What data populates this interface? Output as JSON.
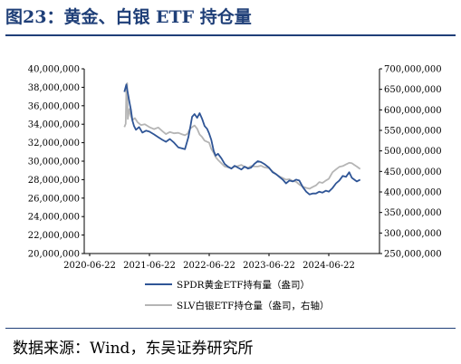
{
  "title": "图23：黄金、白银 ETF 持仓量",
  "source": "数据来源：Wind，东吴证券研究所",
  "chart_data": {
    "type": "line",
    "x_ticks": [
      "2020-06-22",
      "2021-06-22",
      "2022-06-22",
      "2023-06-22",
      "2024-06-22"
    ],
    "y_left_ticks": [
      "20,000,000",
      "22,000,000",
      "24,000,000",
      "26,000,000",
      "28,000,000",
      "30,000,000",
      "32,000,000",
      "34,000,000",
      "36,000,000",
      "38,000,000",
      "40,000,000"
    ],
    "y_right_ticks": [
      "250,000,000",
      "300,000,000",
      "350,000,000",
      "400,000,000",
      "450,000,000",
      "500,000,000",
      "550,000,000",
      "600,000,000",
      "650,000,000",
      "700,000,000"
    ],
    "y_left_range": [
      20000000,
      40000000
    ],
    "y_right_range": [
      250000000,
      700000000
    ],
    "grid": false,
    "legend_position": "bottom",
    "series": [
      {
        "name": "SPDR黄金ETF持有量（盎司）",
        "axis": "left",
        "color": "#2f5596",
        "points": [
          [
            "2021-01-20",
            37500000
          ],
          [
            "2021-02-01",
            38300000
          ],
          [
            "2021-02-10",
            37400000
          ],
          [
            "2021-02-20",
            36400000
          ],
          [
            "2021-03-01",
            35600000
          ],
          [
            "2021-03-10",
            34400000
          ],
          [
            "2021-03-20",
            33800000
          ],
          [
            "2021-04-01",
            33400000
          ],
          [
            "2021-04-20",
            33700000
          ],
          [
            "2021-05-10",
            33100000
          ],
          [
            "2021-06-01",
            33300000
          ],
          [
            "2021-06-22",
            33200000
          ],
          [
            "2021-07-20",
            32900000
          ],
          [
            "2021-08-15",
            32600000
          ],
          [
            "2021-09-10",
            32300000
          ],
          [
            "2021-10-01",
            32100000
          ],
          [
            "2021-10-25",
            32400000
          ],
          [
            "2021-11-20",
            32000000
          ],
          [
            "2021-12-15",
            31500000
          ],
          [
            "2022-01-05",
            31400000
          ],
          [
            "2022-01-25",
            31300000
          ],
          [
            "2022-02-15",
            32600000
          ],
          [
            "2022-03-01",
            33900000
          ],
          [
            "2022-03-10",
            34800000
          ],
          [
            "2022-03-25",
            35100000
          ],
          [
            "2022-04-10",
            34700000
          ],
          [
            "2022-04-25",
            35200000
          ],
          [
            "2022-05-10",
            34600000
          ],
          [
            "2022-05-25",
            33800000
          ],
          [
            "2022-06-10",
            33500000
          ],
          [
            "2022-06-22",
            33000000
          ],
          [
            "2022-07-05",
            32300000
          ],
          [
            "2022-07-20",
            31100000
          ],
          [
            "2022-08-01",
            30600000
          ],
          [
            "2022-08-15",
            30800000
          ],
          [
            "2022-09-05",
            30300000
          ],
          [
            "2022-09-25",
            29700000
          ],
          [
            "2022-10-15",
            29400000
          ],
          [
            "2022-11-05",
            29200000
          ],
          [
            "2022-11-25",
            29500000
          ],
          [
            "2022-12-15",
            29300000
          ],
          [
            "2023-01-05",
            29100000
          ],
          [
            "2023-01-25",
            29400000
          ],
          [
            "2023-02-15",
            29200000
          ],
          [
            "2023-03-05",
            29300000
          ],
          [
            "2023-03-25",
            29700000
          ],
          [
            "2023-04-15",
            30000000
          ],
          [
            "2023-05-05",
            29900000
          ],
          [
            "2023-05-25",
            29700000
          ],
          [
            "2023-06-22",
            29300000
          ],
          [
            "2023-07-15",
            28800000
          ],
          [
            "2023-08-05",
            28600000
          ],
          [
            "2023-08-25",
            28300000
          ],
          [
            "2023-09-15",
            28000000
          ],
          [
            "2023-10-05",
            27600000
          ],
          [
            "2023-10-25",
            27900000
          ],
          [
            "2023-11-15",
            27800000
          ],
          [
            "2023-12-05",
            28000000
          ],
          [
            "2023-12-25",
            27900000
          ],
          [
            "2024-01-15",
            27200000
          ],
          [
            "2024-02-05",
            26700000
          ],
          [
            "2024-02-25",
            26400000
          ],
          [
            "2024-03-15",
            26500000
          ],
          [
            "2024-04-05",
            26500000
          ],
          [
            "2024-04-25",
            26700000
          ],
          [
            "2024-05-15",
            26600000
          ],
          [
            "2024-06-05",
            26800000
          ],
          [
            "2024-06-22",
            26700000
          ],
          [
            "2024-07-15",
            27100000
          ],
          [
            "2024-08-05",
            27600000
          ],
          [
            "2024-08-25",
            27900000
          ],
          [
            "2024-09-15",
            28400000
          ],
          [
            "2024-10-05",
            28300000
          ],
          [
            "2024-10-25",
            28800000
          ],
          [
            "2024-11-10",
            28200000
          ],
          [
            "2024-11-25",
            28000000
          ],
          [
            "2024-12-10",
            27800000
          ],
          [
            "2024-12-31",
            28000000
          ]
        ]
      },
      {
        "name": "SLV白银ETF持仓量（盎司，右轴）",
        "axis": "right",
        "color": "#b5b5b5",
        "points": [
          [
            "2021-01-20",
            558000000
          ],
          [
            "2021-01-28",
            566000000
          ],
          [
            "2021-02-01",
            650000000
          ],
          [
            "2021-02-06",
            665000000
          ],
          [
            "2021-02-10",
            578000000
          ],
          [
            "2021-02-20",
            602000000
          ],
          [
            "2021-03-01",
            585000000
          ],
          [
            "2021-03-10",
            575000000
          ],
          [
            "2021-03-25",
            580000000
          ],
          [
            "2021-04-10",
            570000000
          ],
          [
            "2021-05-01",
            563000000
          ],
          [
            "2021-05-25",
            565000000
          ],
          [
            "2021-06-22",
            558000000
          ],
          [
            "2021-07-20",
            553000000
          ],
          [
            "2021-08-15",
            557000000
          ],
          [
            "2021-09-10",
            548000000
          ],
          [
            "2021-10-01",
            541000000
          ],
          [
            "2021-10-25",
            546000000
          ],
          [
            "2021-11-20",
            543000000
          ],
          [
            "2021-12-15",
            544000000
          ],
          [
            "2022-01-10",
            540000000
          ],
          [
            "2022-01-25",
            538000000
          ],
          [
            "2022-02-10",
            542000000
          ],
          [
            "2022-02-25",
            554000000
          ],
          [
            "2022-03-10",
            558000000
          ],
          [
            "2022-03-25",
            562000000
          ],
          [
            "2022-04-10",
            554000000
          ],
          [
            "2022-04-25",
            540000000
          ],
          [
            "2022-05-10",
            534000000
          ],
          [
            "2022-05-25",
            525000000
          ],
          [
            "2022-06-22",
            520000000
          ],
          [
            "2022-07-05",
            505000000
          ],
          [
            "2022-07-20",
            495000000
          ],
          [
            "2022-08-01",
            485000000
          ],
          [
            "2022-08-15",
            478000000
          ],
          [
            "2022-09-05",
            470000000
          ],
          [
            "2022-09-25",
            462000000
          ],
          [
            "2022-10-15",
            460000000
          ],
          [
            "2022-11-05",
            458000000
          ],
          [
            "2022-11-25",
            462000000
          ],
          [
            "2022-12-15",
            463000000
          ],
          [
            "2023-01-05",
            466000000
          ],
          [
            "2023-01-25",
            461000000
          ],
          [
            "2023-02-15",
            459000000
          ],
          [
            "2023-03-05",
            463000000
          ],
          [
            "2023-03-25",
            462000000
          ],
          [
            "2023-04-15",
            462000000
          ],
          [
            "2023-05-05",
            464000000
          ],
          [
            "2023-05-25",
            460000000
          ],
          [
            "2023-06-22",
            458000000
          ],
          [
            "2023-07-15",
            450000000
          ],
          [
            "2023-08-05",
            443000000
          ],
          [
            "2023-08-25",
            438000000
          ],
          [
            "2023-09-15",
            434000000
          ],
          [
            "2023-10-05",
            430000000
          ],
          [
            "2023-10-25",
            431000000
          ],
          [
            "2023-11-15",
            427000000
          ],
          [
            "2023-12-05",
            425000000
          ],
          [
            "2023-12-25",
            418000000
          ],
          [
            "2024-01-15",
            413000000
          ],
          [
            "2024-02-05",
            410000000
          ],
          [
            "2024-02-25",
            408000000
          ],
          [
            "2024-03-15",
            412000000
          ],
          [
            "2024-04-05",
            416000000
          ],
          [
            "2024-04-25",
            424000000
          ],
          [
            "2024-05-15",
            422000000
          ],
          [
            "2024-06-05",
            428000000
          ],
          [
            "2024-06-22",
            432000000
          ],
          [
            "2024-07-15",
            448000000
          ],
          [
            "2024-08-05",
            455000000
          ],
          [
            "2024-08-25",
            461000000
          ],
          [
            "2024-09-15",
            463000000
          ],
          [
            "2024-10-05",
            467000000
          ],
          [
            "2024-10-25",
            471000000
          ],
          [
            "2024-11-10",
            470000000
          ],
          [
            "2024-11-25",
            466000000
          ],
          [
            "2024-12-10",
            462000000
          ],
          [
            "2024-12-31",
            456000000
          ]
        ]
      }
    ]
  }
}
